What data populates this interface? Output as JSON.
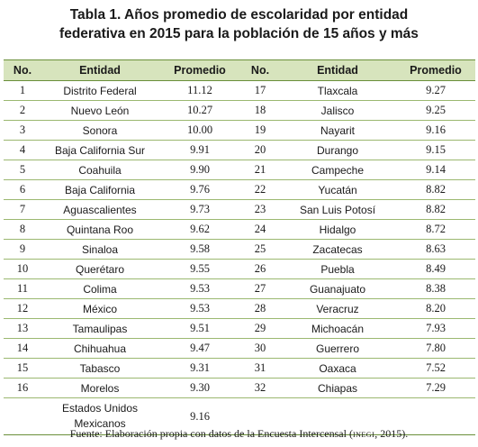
{
  "title": {
    "line1": "Tabla 1. Años promedio de escolaridad por entidad",
    "line2": "federativa en 2015 para la población de 15 años y más"
  },
  "table": {
    "headers": [
      "No.",
      "Entidad",
      "Promedio",
      "No.",
      "Entidad",
      "Promedio"
    ],
    "rows": [
      [
        "1",
        "Distrito Federal",
        "11.12",
        "17",
        "Tlaxcala",
        "9.27"
      ],
      [
        "2",
        "Nuevo León",
        "10.27",
        "18",
        "Jalisco",
        "9.25"
      ],
      [
        "3",
        "Sonora",
        "10.00",
        "19",
        "Nayarit",
        "9.16"
      ],
      [
        "4",
        "Baja California Sur",
        "9.91",
        "20",
        "Durango",
        "9.15"
      ],
      [
        "5",
        "Coahuila",
        "9.90",
        "21",
        "Campeche",
        "9.14"
      ],
      [
        "6",
        "Baja California",
        "9.76",
        "22",
        "Yucatán",
        "8.82"
      ],
      [
        "7",
        "Aguascalientes",
        "9.73",
        "23",
        "San Luis Potosí",
        "8.82"
      ],
      [
        "8",
        "Quintana Roo",
        "9.62",
        "24",
        "Hidalgo",
        "8.72"
      ],
      [
        "9",
        "Sinaloa",
        "9.58",
        "25",
        "Zacatecas",
        "8.63"
      ],
      [
        "10",
        "Querétaro",
        "9.55",
        "26",
        "Puebla",
        "8.49"
      ],
      [
        "11",
        "Colima",
        "9.53",
        "27",
        "Guanajuato",
        "8.38"
      ],
      [
        "12",
        "México",
        "9.53",
        "28",
        "Veracruz",
        "8.20"
      ],
      [
        "13",
        "Tamaulipas",
        "9.51",
        "29",
        "Michoacán",
        "7.93"
      ],
      [
        "14",
        "Chihuahua",
        "9.47",
        "30",
        "Guerrero",
        "7.80"
      ],
      [
        "15",
        "Tabasco",
        "9.31",
        "31",
        "Oaxaca",
        "7.52"
      ],
      [
        "16",
        "Morelos",
        "9.30",
        "32",
        "Chiapas",
        "7.29"
      ]
    ],
    "national": {
      "line1": "Estados Unidos",
      "line2": "Mexicanos",
      "value": "9.16"
    }
  },
  "source": {
    "prefix": "Fuente: Elaboración propia con datos de la Encuesta Intercensal (",
    "org": "inegi",
    "suffix": ", 2015)."
  }
}
